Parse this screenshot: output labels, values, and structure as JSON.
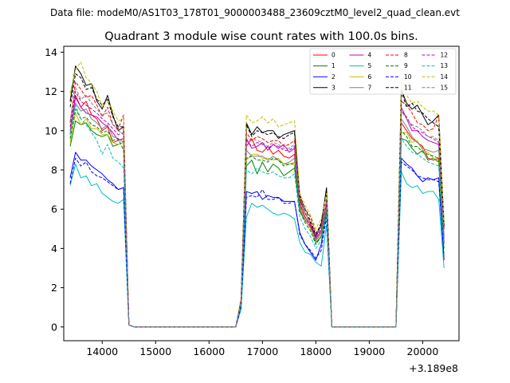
{
  "chart_data": {
    "type": "line",
    "suptitle": "Data file: modeM0/AS1T03_178T01_9000003488_23609cztM0_level2_quad_clean.evt",
    "title": "Quadrant 3 module wise count rates with 100.0s bins.",
    "xlabel": "",
    "ylabel": "",
    "x_offset_label": "+3.189e8",
    "xlim": [
      13280,
      20680
    ],
    "ylim": [
      -0.7,
      14.3
    ],
    "xticks": [
      14000,
      15000,
      16000,
      17000,
      18000,
      19000,
      20000
    ],
    "yticks": [
      0,
      2,
      4,
      6,
      8,
      10,
      12,
      14
    ],
    "x": [
      13400,
      13500,
      13600,
      13700,
      13800,
      13900,
      14000,
      14100,
      14200,
      14300,
      14400,
      14500,
      14600,
      14700,
      14800,
      14900,
      15000,
      15100,
      15200,
      15300,
      15400,
      15500,
      15600,
      15700,
      15800,
      15900,
      16000,
      16100,
      16200,
      16300,
      16400,
      16500,
      16600,
      16700,
      16800,
      16900,
      17000,
      17100,
      17200,
      17300,
      17400,
      17500,
      17600,
      17700,
      17800,
      17900,
      18000,
      18100,
      18200,
      18300,
      18400,
      18500,
      18600,
      18700,
      18800,
      18900,
      19000,
      19100,
      19200,
      19300,
      19400,
      19500,
      19600,
      19700,
      19800,
      19900,
      20000,
      20100,
      20200,
      20300,
      20400
    ],
    "legend": {
      "placement": "top-right",
      "columns": 4
    },
    "series": [
      {
        "name": "0",
        "color": "#ff0000",
        "dash": false,
        "values": [
          9.8,
          11.8,
          11.2,
          11.5,
          10.8,
          10.6,
          10.0,
          10.2,
          9.4,
          9.5,
          9.6,
          0.1,
          0,
          0,
          0,
          0,
          0,
          0,
          0,
          0,
          0,
          0,
          0,
          0,
          0,
          0,
          0,
          0,
          0,
          0,
          0,
          0,
          1.3,
          9.2,
          9.6,
          9.0,
          8.9,
          9.2,
          8.8,
          9.0,
          8.7,
          8.6,
          8.8,
          6.3,
          5.6,
          5.2,
          4.5,
          4.9,
          6.2,
          0,
          0,
          0,
          0,
          0,
          0,
          0,
          0,
          0,
          0,
          0,
          0,
          0,
          10.4,
          10.0,
          9.6,
          9.4,
          9.2,
          8.6,
          8.5,
          8.6,
          4.3
        ]
      },
      {
        "name": "1",
        "color": "#008000",
        "dash": false,
        "values": [
          9.2,
          10.5,
          10.3,
          10.4,
          10.0,
          9.8,
          9.7,
          9.8,
          9.2,
          9.3,
          9.4,
          0.1,
          0,
          0,
          0,
          0,
          0,
          0,
          0,
          0,
          0,
          0,
          0,
          0,
          0,
          0,
          0,
          0,
          0,
          0,
          0,
          0,
          1.2,
          8.2,
          8.5,
          7.8,
          8.4,
          7.9,
          8.3,
          8.1,
          7.7,
          7.9,
          8.1,
          5.9,
          5.4,
          5.1,
          4.3,
          4.6,
          6.0,
          0,
          0,
          0,
          0,
          0,
          0,
          0,
          0,
          0,
          0,
          0,
          0,
          0,
          9.6,
          9.5,
          9.1,
          8.8,
          9.0,
          8.5,
          8.6,
          8.4,
          4.0
        ]
      },
      {
        "name": "2",
        "color": "#0000ff",
        "dash": false,
        "values": [
          7.6,
          8.9,
          8.5,
          8.5,
          8.2,
          8.0,
          7.8,
          7.5,
          7.3,
          7.0,
          7.1,
          0.1,
          0,
          0,
          0,
          0,
          0,
          0,
          0,
          0,
          0,
          0,
          0,
          0,
          0,
          0,
          0,
          0,
          0,
          0,
          0,
          0,
          1.0,
          6.9,
          6.8,
          6.9,
          6.5,
          6.7,
          6.6,
          6.6,
          6.4,
          6.4,
          6.4,
          4.8,
          4.2,
          3.8,
          3.4,
          4.2,
          5.9,
          0,
          0,
          0,
          0,
          0,
          0,
          0,
          0,
          0,
          0,
          0,
          0,
          0,
          8.6,
          8.3,
          8.1,
          7.7,
          7.4,
          7.6,
          7.5,
          7.6,
          3.4
        ]
      },
      {
        "name": "3",
        "color": "#000000",
        "dash": false,
        "values": [
          11.5,
          13.3,
          12.9,
          12.3,
          12.4,
          11.5,
          11.1,
          11.8,
          10.8,
          10.0,
          10.2,
          0.1,
          0,
          0,
          0,
          0,
          0,
          0,
          0,
          0,
          0,
          0,
          0,
          0,
          0,
          0,
          0,
          0,
          0,
          0,
          0,
          0,
          1.4,
          10.4,
          9.8,
          10.2,
          9.9,
          10.0,
          10.0,
          9.6,
          9.8,
          9.9,
          10.0,
          6.5,
          5.8,
          5.3,
          4.6,
          5.2,
          7.1,
          0,
          0,
          0,
          0,
          0,
          0,
          0,
          0,
          0,
          0,
          0,
          0,
          0,
          12.1,
          11.4,
          11.1,
          11.3,
          10.8,
          10.3,
          10.5,
          10.8,
          5.2
        ]
      },
      {
        "name": "4",
        "color": "#bf00bf",
        "dash": false,
        "values": [
          10.0,
          11.7,
          11.2,
          10.9,
          10.8,
          10.7,
          10.4,
          10.2,
          9.9,
          9.5,
          9.6,
          0.1,
          0,
          0,
          0,
          0,
          0,
          0,
          0,
          0,
          0,
          0,
          0,
          0,
          0,
          0,
          0,
          0,
          0,
          0,
          0,
          0,
          1.3,
          9.6,
          9.1,
          9.2,
          9.4,
          9.0,
          9.3,
          9.1,
          9.3,
          8.9,
          9.1,
          6.1,
          5.5,
          5.0,
          4.5,
          4.9,
          6.2,
          0,
          0,
          0,
          0,
          0,
          0,
          0,
          0,
          0,
          0,
          0,
          0,
          0,
          11.2,
          10.6,
          10.0,
          10.0,
          9.7,
          9.5,
          9.4,
          9.3,
          4.6
        ]
      },
      {
        "name": "5",
        "color": "#00bfbf",
        "dash": false,
        "values": [
          7.2,
          8.3,
          7.6,
          7.7,
          7.2,
          7.3,
          6.8,
          6.6,
          6.4,
          6.3,
          6.5,
          0.1,
          0,
          0,
          0,
          0,
          0,
          0,
          0,
          0,
          0,
          0,
          0,
          0,
          0,
          0,
          0,
          0,
          0,
          0,
          0,
          0,
          0.9,
          5.6,
          6.3,
          6.1,
          6.2,
          6.0,
          5.8,
          5.7,
          5.8,
          5.7,
          5.5,
          4.3,
          3.8,
          3.7,
          3.3,
          3.1,
          5.2,
          0,
          0,
          0,
          0,
          0,
          0,
          0,
          0,
          0,
          0,
          0,
          0,
          0,
          7.9,
          7.3,
          7.1,
          7.2,
          6.8,
          6.9,
          6.9,
          6.5,
          3.0
        ]
      },
      {
        "name": "6",
        "color": "#bfbf00",
        "dash": false,
        "values": [
          9.4,
          10.9,
          10.3,
          10.6,
          10.1,
          10.1,
          9.8,
          9.8,
          9.4,
          9.3,
          9.4,
          0.1,
          0,
          0,
          0,
          0,
          0,
          0,
          0,
          0,
          0,
          0,
          0,
          0,
          0,
          0,
          0,
          0,
          0,
          0,
          0,
          0,
          1.2,
          8.5,
          8.8,
          8.8,
          8.6,
          8.6,
          8.5,
          8.6,
          8.3,
          8.3,
          8.4,
          6.1,
          5.5,
          5.0,
          4.4,
          4.7,
          6.0,
          0,
          0,
          0,
          0,
          0,
          0,
          0,
          0,
          0,
          0,
          0,
          0,
          0,
          9.9,
          9.9,
          9.4,
          9.5,
          9.0,
          8.9,
          8.6,
          8.5,
          4.2
        ]
      },
      {
        "name": "7",
        "color": "#808080",
        "dash": false,
        "values": [
          9.9,
          11.4,
          11.0,
          11.1,
          10.6,
          10.4,
          10.1,
          10.3,
          9.7,
          9.6,
          9.4,
          0.1,
          0,
          0,
          0,
          0,
          0,
          0,
          0,
          0,
          0,
          0,
          0,
          0,
          0,
          0,
          0,
          0,
          0,
          0,
          0,
          0,
          1.3,
          9.0,
          8.7,
          8.7,
          8.7,
          8.5,
          8.7,
          8.5,
          8.3,
          8.4,
          8.6,
          6.0,
          5.4,
          5.1,
          4.4,
          4.8,
          6.1,
          0,
          0,
          0,
          0,
          0,
          0,
          0,
          0,
          0,
          0,
          0,
          0,
          0,
          10.6,
          10.2,
          9.7,
          9.4,
          9.1,
          9.0,
          8.9,
          9.0,
          4.4
        ]
      },
      {
        "name": "8",
        "color": "#ff0000",
        "dash": true,
        "values": [
          10.4,
          12.5,
          12.1,
          11.7,
          11.8,
          11.3,
          10.7,
          11.2,
          10.3,
          10.1,
          10.8,
          0.1,
          0,
          0,
          0,
          0,
          0,
          0,
          0,
          0,
          0,
          0,
          0,
          0,
          0,
          0,
          0,
          0,
          0,
          0,
          0,
          0,
          1.4,
          9.9,
          9.5,
          9.7,
          9.6,
          9.4,
          9.5,
          9.5,
          9.2,
          9.3,
          9.5,
          6.6,
          6.0,
          5.6,
          4.8,
          5.1,
          6.5,
          0,
          0,
          0,
          0,
          0,
          0,
          0,
          0,
          0,
          0,
          0,
          0,
          0,
          11.5,
          11.3,
          10.9,
          10.4,
          10.3,
          10.0,
          10.1,
          10.8,
          5.0
        ]
      },
      {
        "name": "9",
        "color": "#008000",
        "dash": true,
        "values": [
          9.6,
          11.1,
          10.6,
          10.7,
          10.3,
          10.2,
          9.9,
          10.0,
          9.5,
          9.6,
          9.0,
          0.1,
          0,
          0,
          0,
          0,
          0,
          0,
          0,
          0,
          0,
          0,
          0,
          0,
          0,
          0,
          0,
          0,
          0,
          0,
          0,
          0,
          1.2,
          8.6,
          8.7,
          8.5,
          8.5,
          8.4,
          8.6,
          8.5,
          8.2,
          8.3,
          8.3,
          5.9,
          5.3,
          4.9,
          4.2,
          4.6,
          5.9,
          0,
          0,
          0,
          0,
          0,
          0,
          0,
          0,
          0,
          0,
          0,
          0,
          0,
          10.0,
          9.7,
          9.2,
          9.2,
          8.9,
          8.8,
          8.7,
          8.6,
          4.2
        ]
      },
      {
        "name": "10",
        "color": "#0000ff",
        "dash": true,
        "values": [
          7.3,
          8.6,
          8.2,
          8.4,
          7.9,
          7.7,
          7.6,
          7.4,
          7.2,
          7.0,
          7.1,
          0.1,
          0,
          0,
          0,
          0,
          0,
          0,
          0,
          0,
          0,
          0,
          0,
          0,
          0,
          0,
          0,
          0,
          0,
          0,
          0,
          0,
          1.0,
          6.6,
          6.7,
          6.6,
          7.0,
          6.5,
          6.5,
          6.6,
          6.3,
          6.3,
          6.4,
          4.7,
          4.2,
          3.9,
          3.5,
          3.9,
          5.6,
          0,
          0,
          0,
          0,
          0,
          0,
          0,
          0,
          0,
          0,
          0,
          0,
          0,
          8.4,
          8.2,
          8.0,
          7.7,
          7.6,
          7.5,
          7.5,
          7.4,
          3.6
        ]
      },
      {
        "name": "11",
        "color": "#000000",
        "dash": true,
        "values": [
          11.2,
          12.9,
          12.7,
          12.1,
          12.2,
          11.6,
          11.3,
          11.6,
          10.7,
          10.2,
          10.2,
          0.1,
          0,
          0,
          0,
          0,
          0,
          0,
          0,
          0,
          0,
          0,
          0,
          0,
          0,
          0,
          0,
          0,
          0,
          0,
          0,
          0,
          1.4,
          10.3,
          9.7,
          10.0,
          9.9,
          9.8,
          9.9,
          9.7,
          9.6,
          9.8,
          9.9,
          6.7,
          6.0,
          5.4,
          4.7,
          5.3,
          6.9,
          0,
          0,
          0,
          0,
          0,
          0,
          0,
          0,
          0,
          0,
          0,
          0,
          0,
          12.0,
          11.2,
          11.4,
          11.0,
          10.9,
          10.6,
          10.4,
          10.2,
          5.0
        ]
      },
      {
        "name": "12",
        "color": "#bf00bf",
        "dash": true,
        "values": [
          10.2,
          12.0,
          11.5,
          11.3,
          11.1,
          10.9,
          10.6,
          10.4,
          10.1,
          9.8,
          9.9,
          0.1,
          0,
          0,
          0,
          0,
          0,
          0,
          0,
          0,
          0,
          0,
          0,
          0,
          0,
          0,
          0,
          0,
          0,
          0,
          0,
          0,
          1.3,
          9.5,
          9.2,
          9.4,
          9.3,
          9.1,
          9.3,
          9.2,
          9.0,
          9.0,
          9.2,
          6.2,
          5.6,
          5.1,
          4.6,
          5.0,
          6.3,
          0,
          0,
          0,
          0,
          0,
          0,
          0,
          0,
          0,
          0,
          0,
          0,
          0,
          11.0,
          10.7,
          10.2,
          10.0,
          9.9,
          9.7,
          9.6,
          9.4,
          4.6
        ]
      },
      {
        "name": "13",
        "color": "#00bfbf",
        "dash": true,
        "values": [
          9.8,
          11.3,
          10.6,
          10.3,
          9.9,
          9.5,
          8.8,
          9.3,
          8.6,
          8.4,
          8.1,
          0.1,
          0,
          0,
          0,
          0,
          0,
          0,
          0,
          0,
          0,
          0,
          0,
          0,
          0,
          0,
          0,
          0,
          0,
          0,
          0,
          0,
          1.1,
          8.0,
          7.8,
          8.1,
          7.9,
          7.8,
          7.9,
          7.7,
          7.6,
          7.6,
          7.8,
          5.6,
          5.0,
          4.6,
          4.0,
          4.4,
          5.7,
          0,
          0,
          0,
          0,
          0,
          0,
          0,
          0,
          0,
          0,
          0,
          0,
          0,
          9.6,
          9.2,
          8.9,
          8.8,
          8.6,
          8.4,
          8.3,
          8.2,
          4.0
        ]
      },
      {
        "name": "14",
        "color": "#bfbf00",
        "dash": true,
        "values": [
          11.9,
          13.1,
          13.5,
          12.7,
          12.4,
          12.0,
          11.2,
          11.5,
          11.0,
          10.5,
          10.6,
          0.1,
          0,
          0,
          0,
          0,
          0,
          0,
          0,
          0,
          0,
          0,
          0,
          0,
          0,
          0,
          0,
          0,
          0,
          0,
          0,
          0,
          1.5,
          10.8,
          10.4,
          10.5,
          10.7,
          10.4,
          10.6,
          10.2,
          10.3,
          10.4,
          10.5,
          6.8,
          6.2,
          5.7,
          5.0,
          5.5,
          6.8,
          0,
          0,
          0,
          0,
          0,
          0,
          0,
          0,
          0,
          0,
          0,
          0,
          0,
          12.5,
          11.8,
          11.4,
          11.5,
          11.2,
          11.0,
          11.0,
          10.8,
          5.3
        ]
      },
      {
        "name": "15",
        "color": "#808080",
        "dash": true,
        "values": [
          10.5,
          12.2,
          11.6,
          11.8,
          11.4,
          11.1,
          10.8,
          10.9,
          10.3,
          10.0,
          9.8,
          0.1,
          0,
          0,
          0,
          0,
          0,
          0,
          0,
          0,
          0,
          0,
          0,
          0,
          0,
          0,
          0,
          0,
          0,
          0,
          0,
          0,
          1.3,
          9.4,
          9.6,
          9.5,
          9.4,
          9.2,
          9.4,
          9.3,
          9.1,
          9.1,
          9.3,
          6.4,
          5.8,
          5.3,
          4.7,
          5.1,
          6.5,
          0,
          0,
          0,
          0,
          0,
          0,
          0,
          0,
          0,
          0,
          0,
          0,
          0,
          11.0,
          10.6,
          10.3,
          10.2,
          10.0,
          9.7,
          9.7,
          9.5,
          4.7
        ]
      }
    ]
  }
}
